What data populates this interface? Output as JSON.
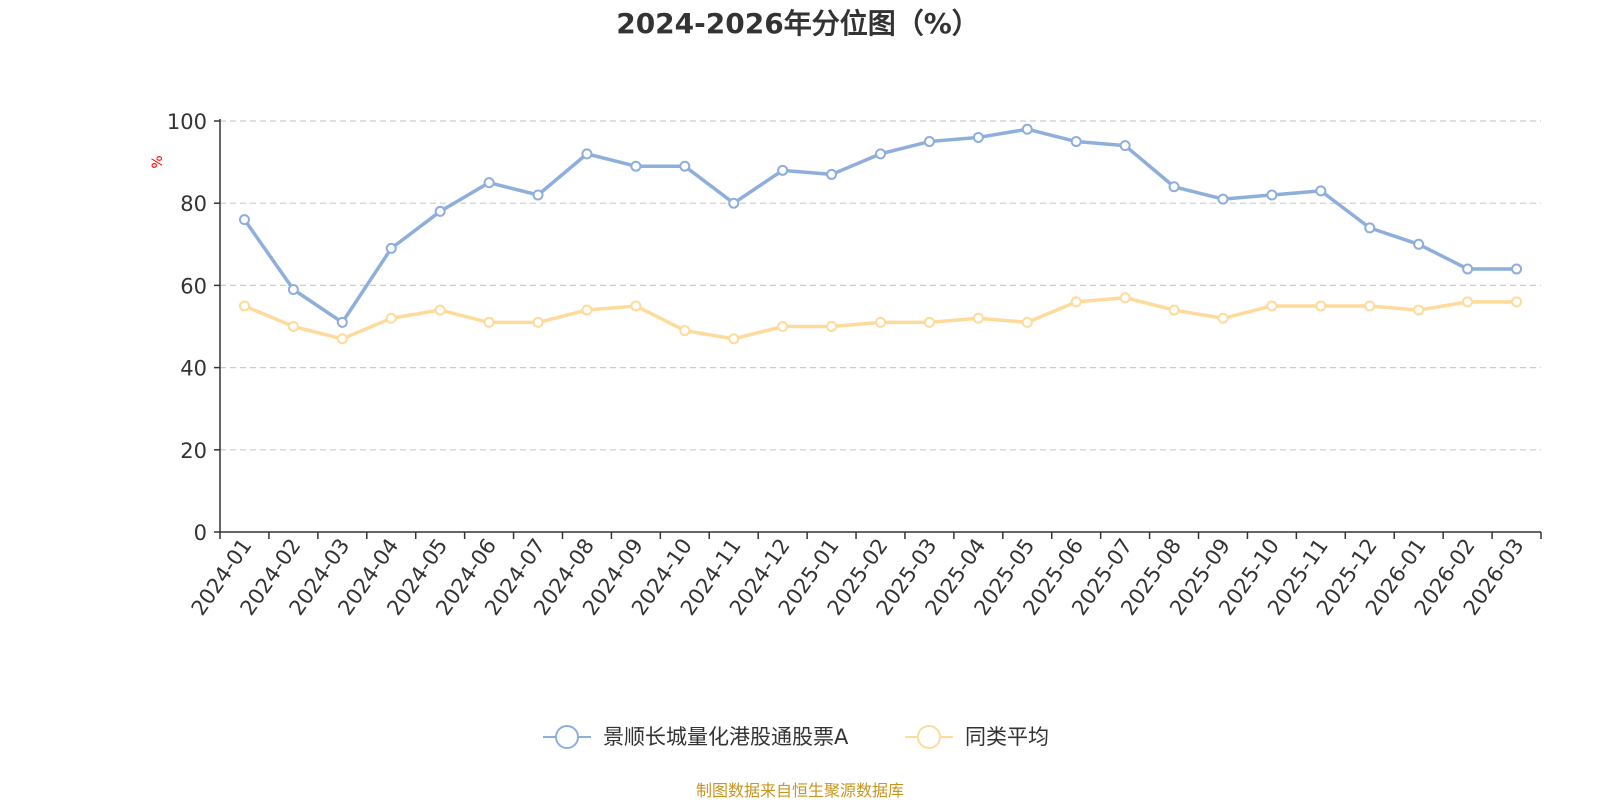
{
  "colors": {
    "series1": "#8eaedb",
    "series2": "#fedb9b",
    "axis": "#333333",
    "grid": "#cccccc",
    "unit": "#ff0000",
    "source": "#c8961e"
  },
  "source_text": "制图数据来自恒生聚源数据库",
  "chart_data": {
    "type": "line",
    "title": "2024-2026年分位图（%）",
    "ylabel": "%",
    "xlabel": "",
    "ylim": [
      0,
      100
    ],
    "yticks": [
      0,
      20,
      40,
      60,
      80,
      100
    ],
    "grid": true,
    "legend_position": "bottom-center",
    "categories": [
      "2024-01",
      "2024-02",
      "2024-03",
      "2024-04",
      "2024-05",
      "2024-06",
      "2024-07",
      "2024-08",
      "2024-09",
      "2024-10",
      "2024-11",
      "2024-12",
      "2025-01",
      "2025-02",
      "2025-03",
      "2025-04",
      "2025-05",
      "2025-06",
      "2025-07",
      "2025-08",
      "2025-09",
      "2025-10",
      "2025-11",
      "2025-12",
      "2026-01",
      "2026-02",
      "2026-03"
    ],
    "series": [
      {
        "name": "景顺长城量化港股通股票A",
        "values": [
          76,
          59,
          51,
          69,
          78,
          85,
          82,
          92,
          89,
          89,
          80,
          88,
          87,
          92,
          95,
          96,
          98,
          95,
          94,
          84,
          81,
          82,
          83,
          74,
          70,
          64,
          64
        ]
      },
      {
        "name": "同类平均",
        "values": [
          55,
          50,
          47,
          52,
          54,
          51,
          51,
          54,
          55,
          49,
          47,
          50,
          50,
          51,
          51,
          52,
          51,
          56,
          57,
          54,
          52,
          55,
          55,
          55,
          54,
          56,
          56
        ]
      }
    ]
  }
}
